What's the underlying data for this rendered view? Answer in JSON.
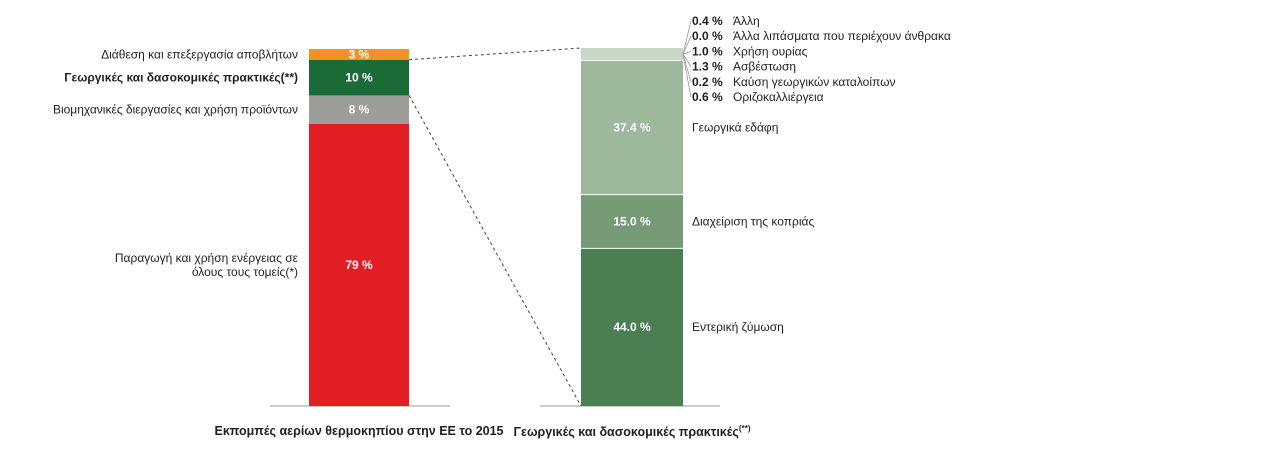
{
  "chart_data": [
    {
      "type": "bar",
      "stacked": true,
      "title": "Εκπομπές αερίων θερμοκηπίου στην ΕΕ το 2015",
      "unit": "%",
      "segments": [
        {
          "label_lines": [
            "Παραγωγή και χρήση ενέργειας σε",
            "όλους τους τομείς(*)"
          ],
          "value": 79,
          "display": "79 %",
          "color": "#e31d24",
          "bold": false
        },
        {
          "label_lines": [
            "Βιομηχανικές διεργασίες και χρήση προϊόντων"
          ],
          "value": 8,
          "display": "8 %",
          "color": "#9d9d9c",
          "bold": false
        },
        {
          "label_lines": [
            "Γεωργικές και δασοκομικές πρακτικές(**)"
          ],
          "value": 10,
          "display": "10 %",
          "color": "#1a6b37",
          "bold": true
        },
        {
          "label_lines": [
            "Διάθεση και επεξεργασία αποβλήτων"
          ],
          "value": 3,
          "display": "3 %",
          "color": "#f39125",
          "bold": false
        }
      ]
    },
    {
      "type": "bar",
      "stacked": true,
      "title": "Γεωργικές και δασοκομικές πρακτικές",
      "title_superscript": "(**)",
      "unit": "%",
      "segments": [
        {
          "label": "Εντερική ζύμωση",
          "value": 44.0,
          "display": "44.0 %",
          "color": "#4a7f51"
        },
        {
          "label": "Διαχείριση της κοπριάς",
          "value": 15.0,
          "display": "15.0 %",
          "color": "#769a76"
        },
        {
          "label": "Γεωργικά εδάφη",
          "value": 37.4,
          "display": "37.4 %",
          "color": "#9db89a"
        },
        {
          "label": "Οριζοκαλλιέργεια",
          "value": 0.6,
          "display": "0.6 %",
          "color": "#c6d6c3"
        },
        {
          "label": "Καύση γεωργικών καταλοίπων",
          "value": 0.2,
          "display": "0.2 %",
          "color": "#c6d6c3"
        },
        {
          "label": "Ασβέστωση",
          "value": 1.3,
          "display": "1.3 %",
          "color": "#c6d6c3"
        },
        {
          "label": "Χρήση ουρίας",
          "value": 1.0,
          "display": "1.0 %",
          "color": "#c6d6c3"
        },
        {
          "label": "Άλλα λιπάσματα που περιέχουν άνθρακα",
          "value": 0.0,
          "display": "0.0 %",
          "color": "#c6d6c3"
        },
        {
          "label": "Άλλη",
          "value": 0.4,
          "display": "0.4 %",
          "color": "#c6d6c3"
        }
      ]
    }
  ]
}
